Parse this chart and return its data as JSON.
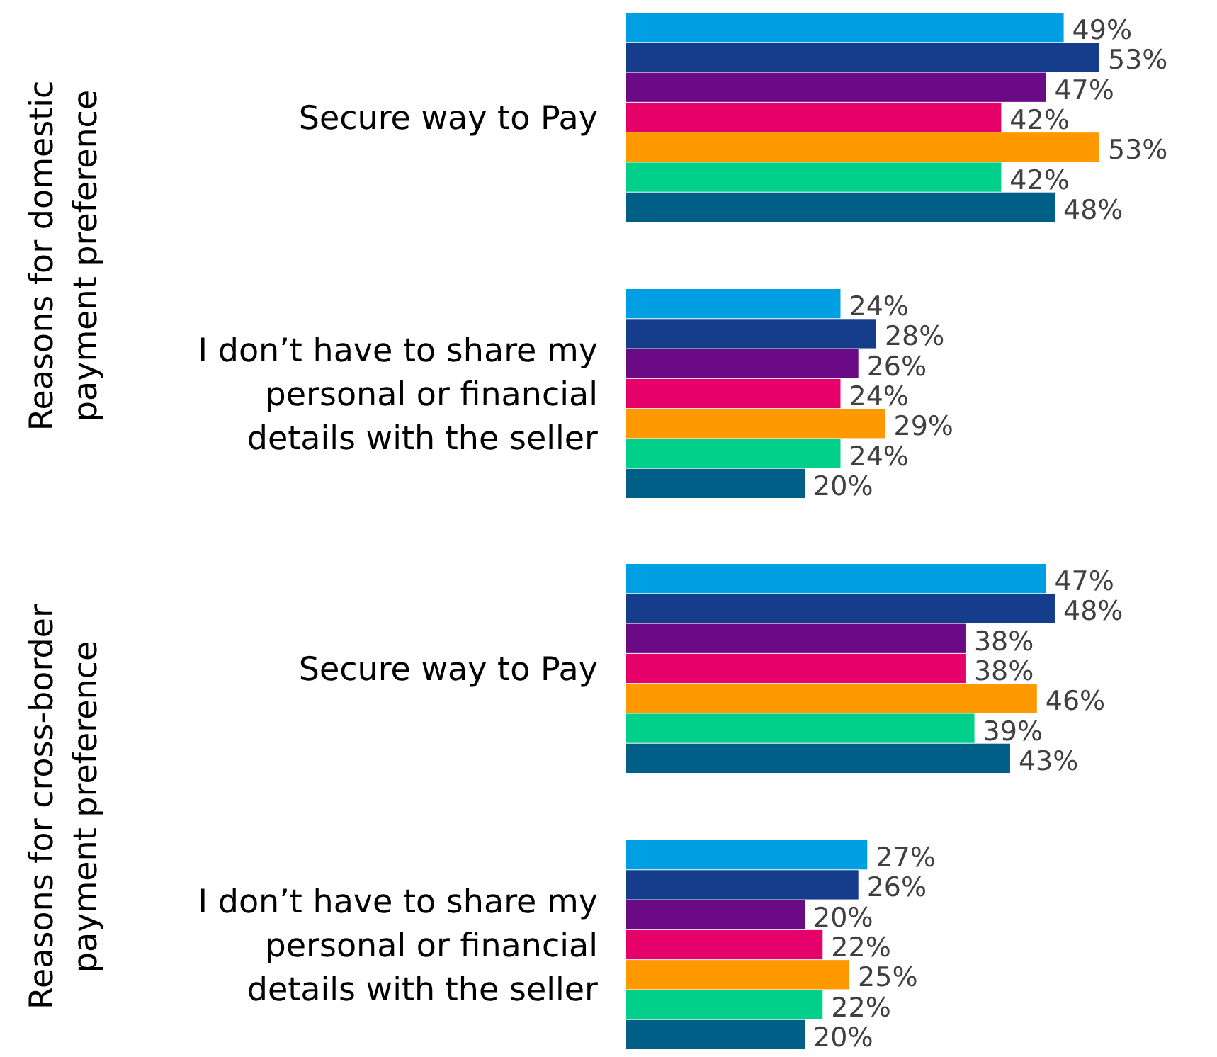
{
  "chart_data": {
    "type": "bar",
    "orientation": "horizontal",
    "categories": [
      "Secure way to Pay",
      "I don’t have to share my personal or financial details with the seller",
      "Secure way to Pay",
      "I don’t have to share my personal or financial details with the seller"
    ],
    "series": [
      {
        "color": "#009fe3",
        "values": [
          49,
          24,
          47,
          27
        ],
        "value_labels": [
          "49%",
          "24%",
          "47%",
          "27%"
        ]
      },
      {
        "color": "#163c8c",
        "values": [
          53,
          28,
          48,
          26
        ],
        "value_labels": [
          "53%",
          "28%",
          "48%",
          "26%"
        ]
      },
      {
        "color": "#6a0a85",
        "values": [
          47,
          26,
          38,
          20
        ],
        "value_labels": [
          "47%",
          "26%",
          "38%",
          "20%"
        ]
      },
      {
        "color": "#e5006a",
        "values": [
          42,
          24,
          38,
          22
        ],
        "value_labels": [
          "42%",
          "24%",
          "38%",
          "22%"
        ]
      },
      {
        "color": "#ff9900",
        "values": [
          53,
          29,
          46,
          25
        ],
        "value_labels": [
          "53%",
          "29%",
          "46%",
          "25%"
        ]
      },
      {
        "color": "#00d08a",
        "values": [
          42,
          24,
          39,
          22
        ],
        "value_labels": [
          "42%",
          "24%",
          "39%",
          "22%"
        ]
      },
      {
        "color": "#005f87",
        "values": [
          48,
          20,
          43,
          20
        ],
        "value_labels": [
          "48%",
          "20%",
          "43%",
          "20%"
        ]
      }
    ],
    "annotations": [
      "Reasons for domestic payment preference",
      "Reasons for cross-border payment preference"
    ]
  }
}
